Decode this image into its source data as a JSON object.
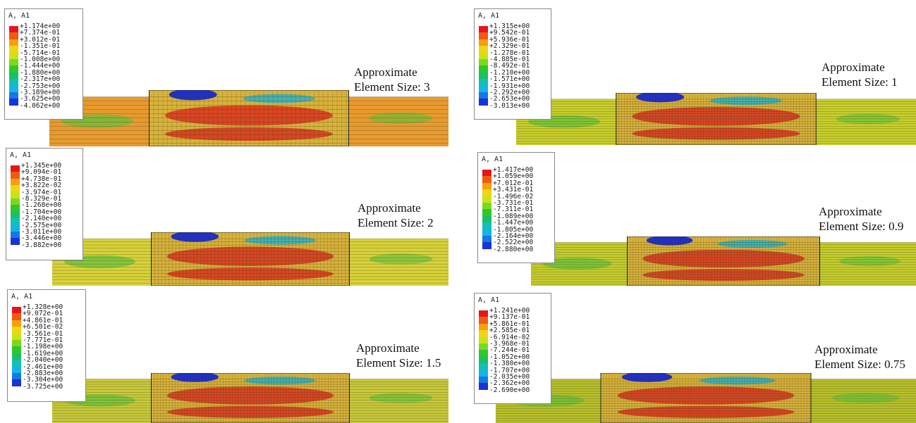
{
  "panels": [
    {
      "legend_title": "A, A1",
      "legend_values": [
        "+1.174e+00",
        "+7.374e-01",
        "+3.012e-01",
        "-1.351e-01",
        "-5.714e-01",
        "-1.008e+00",
        "-1.444e+00",
        "-1.880e+00",
        "-2.317e+00",
        "-2.753e+00",
        "-3.189e+00",
        "-3.625e+00",
        "-4.062e+00"
      ],
      "caption_line1": "Approximate",
      "caption_line2": "Element Size: 3",
      "base_color": "#e79a2e"
    },
    {
      "legend_title": "A, A1",
      "legend_values": [
        "+1.315e+00",
        "+9.542e-01",
        "+5.936e-01",
        "+2.329e-01",
        "-1.278e-01",
        "-4.885e-01",
        "-8.492e-01",
        "-1.210e+00",
        "-1.571e+00",
        "-1.931e+00",
        "-2.292e+00",
        "-2.653e+00",
        "-3.013e+00"
      ],
      "caption_line1": "Approximate",
      "caption_line2": "Element Size: 1",
      "base_color": "#c9cf2a"
    },
    {
      "legend_title": "A, A1",
      "legend_values": [
        "+1.345e+00",
        "+9.094e-01",
        "+4.738e-01",
        "+3.822e-02",
        "-3.974e-01",
        "-8.329e-01",
        "-1.268e+00",
        "-1.704e+00",
        "-2.140e+00",
        "-2.575e+00",
        "-3.011e+00",
        "-3.446e+00",
        "-3.882e+00"
      ],
      "caption_line1": "Approximate",
      "caption_line2": "Element Size: 2",
      "base_color": "#d8d23a"
    },
    {
      "legend_title": "A, A1",
      "legend_values": [
        "+1.417e+00",
        "+1.059e+00",
        "+7.012e-01",
        "+3.431e-01",
        "-1.496e-02",
        "-3.731e-01",
        "-7.311e-01",
        "-1.089e+00",
        "-1.447e+00",
        "-1.805e+00",
        "-2.164e+00",
        "-2.522e+00",
        "-2.880e+00"
      ],
      "caption_line1": "Approximate",
      "caption_line2": "Element Size: 0.9",
      "base_color": "#c4cd2c"
    },
    {
      "legend_title": "A, A1",
      "legend_values": [
        "+1.328e+00",
        "+9.072e-01",
        "+4.861e-01",
        "+6.501e-02",
        "-3.561e-01",
        "-7.771e-01",
        "-1.198e+00",
        "-1.619e+00",
        "-2.040e+00",
        "-2.461e+00",
        "-2.883e+00",
        "-3.304e+00",
        "-3.725e+00"
      ],
      "caption_line1": "Approximate",
      "caption_line2": "Element Size: 1.5",
      "base_color": "#c8c93a"
    },
    {
      "legend_title": "A, A1",
      "legend_values": [
        "+1.241e+00",
        "+9.137e-01",
        "+5.861e-01",
        "+2.585e-01",
        "-6.914e-02",
        "-3.968e-01",
        "-7.244e-01",
        "-1.052e+00",
        "-1.380e+00",
        "-1.707e+00",
        "-2.035e+00",
        "-2.362e+00",
        "-2.690e+00"
      ],
      "caption_line1": "Approximate",
      "caption_line2": "Element Size: 0.75",
      "base_color": "#b7c02a"
    }
  ],
  "legend_colors": [
    "#e8141b",
    "#f05a14",
    "#f5a00f",
    "#f0d512",
    "#c8e418",
    "#7cd81f",
    "#2ec82a",
    "#18c06a",
    "#12c0b4",
    "#14b4e6",
    "#1478e6",
    "#1a32d8",
    "#1414c8"
  ]
}
